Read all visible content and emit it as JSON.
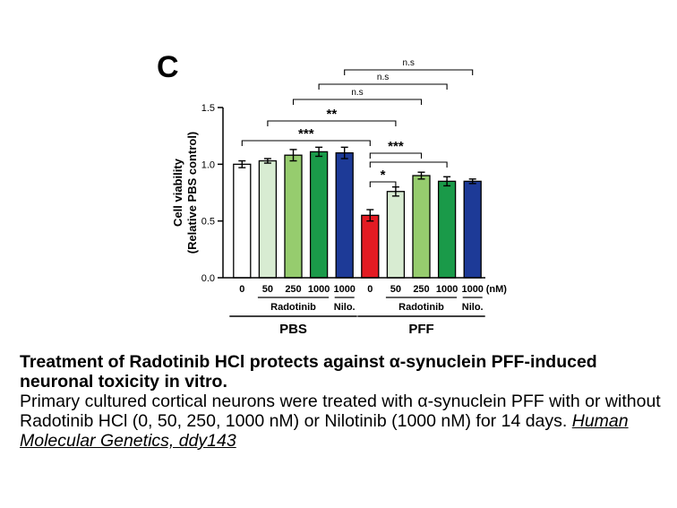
{
  "panel_label": "C",
  "chart_data": {
    "type": "bar",
    "ylabel_lines": [
      "Cell viability",
      "(Relative PBS control)"
    ],
    "ylim": [
      0,
      1.5
    ],
    "y_ticks": [
      "0.0",
      "0.5",
      "1.0",
      "1.5"
    ],
    "unit_label": "(nM)",
    "categories": [
      "0",
      "50",
      "250",
      "1000",
      "1000",
      "0",
      "50",
      "250",
      "1000",
      "1000"
    ],
    "values": [
      1.0,
      1.03,
      1.08,
      1.11,
      1.1,
      0.55,
      0.76,
      0.9,
      0.85,
      0.85
    ],
    "errors": [
      0.03,
      0.02,
      0.05,
      0.04,
      0.05,
      0.05,
      0.04,
      0.03,
      0.04,
      0.02
    ],
    "bar_colors": [
      "#ffffff",
      "#d8ecd2",
      "#96cc6e",
      "#1a9a49",
      "#1d3a97",
      "#e31b23",
      "#d8ecd2",
      "#96cc6e",
      "#1a9a49",
      "#1d3a97"
    ],
    "subgroups": [
      {
        "label": "Radotinib",
        "from": 1,
        "to": 3
      },
      {
        "label": "Nilo.",
        "from": 4,
        "to": 4
      },
      {
        "label": "Radotinib",
        "from": 6,
        "to": 8
      },
      {
        "label": "Nilo.",
        "from": 9,
        "to": 9
      }
    ],
    "groups": [
      {
        "label": "PBS",
        "from": 0,
        "to": 4
      },
      {
        "label": "PFF",
        "from": 5,
        "to": 9
      }
    ],
    "significance": [
      {
        "label": "n.s",
        "from": 4,
        "to": 9
      },
      {
        "label": "n.s",
        "from": 3,
        "to": 8
      },
      {
        "label": "n.s",
        "from": 2,
        "to": 7
      },
      {
        "label": "**",
        "from": 1,
        "to": 6
      },
      {
        "label": "***",
        "from": 0,
        "to": 5
      },
      {
        "label": "***",
        "from": 5,
        "to": 7
      },
      {
        "label": "",
        "from": 5,
        "to": 8
      },
      {
        "label": "*",
        "from": 5,
        "to": 6
      }
    ]
  },
  "caption": {
    "title": "Treatment of Radotinib HCl protects against α-synuclein PFF-induced neuronal toxicity in vitro.",
    "body": "Primary cultured cortical neurons were treated with α-synuclein PFF with or without Radotinib HCl (0, 50, 250, 1000 nM) or Nilotinib (1000 nM) for 14 days. ",
    "citation": "Human Molecular Genetics, ddy143"
  }
}
